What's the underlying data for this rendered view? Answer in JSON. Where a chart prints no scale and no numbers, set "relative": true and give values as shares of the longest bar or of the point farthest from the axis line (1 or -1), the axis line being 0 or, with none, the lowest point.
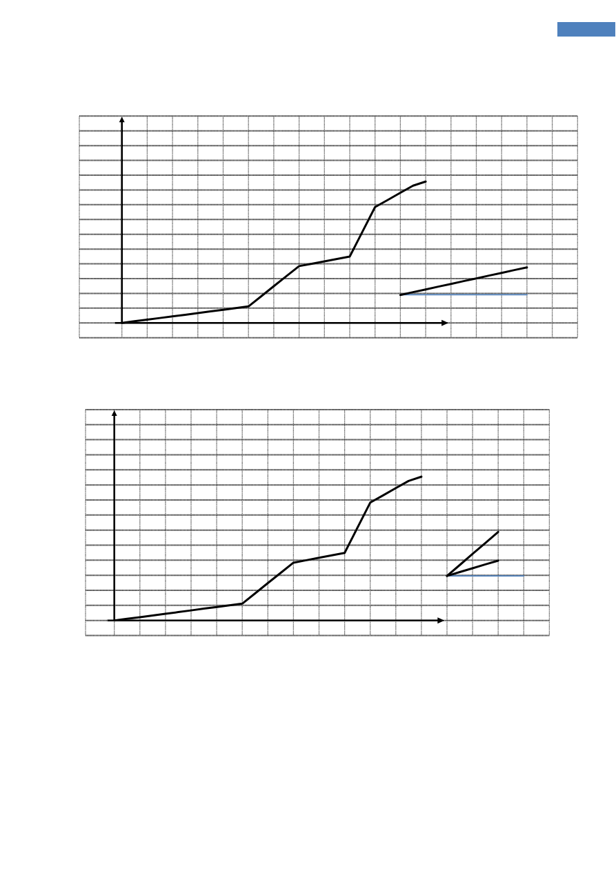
{
  "chart_data": [
    {
      "type": "line",
      "relative": true,
      "grid": true,
      "categories": [
        null,
        null,
        null,
        null,
        null,
        null,
        null,
        null,
        null,
        null,
        null,
        null,
        null,
        null,
        null,
        null,
        null,
        null,
        null,
        null,
        null,
        null,
        null,
        null,
        null,
        null,
        null,
        null,
        null,
        null,
        null,
        null,
        null,
        null,
        null,
        null,
        null
      ],
      "series": [
        {
          "color": "#4f81bd",
          "values": [
            null,
            null,
            null,
            null,
            null,
            null,
            null,
            null,
            null,
            null,
            null,
            null,
            null,
            null,
            null,
            null,
            null,
            null,
            null,
            null,
            null,
            null,
            0.2,
            0.2,
            0.2,
            0.2,
            0.2,
            0.2,
            0.2,
            0.2,
            0.2,
            0.2,
            0.2,
            null,
            null,
            null,
            null
          ]
        },
        {
          "color": "#000000",
          "values": [
            0,
            0.012,
            0.023,
            0.035,
            0.047,
            0.058,
            0.07,
            0.082,
            0.093,
            0.105,
            0.117,
            0.188,
            0.26,
            0.331,
            0.402,
            0.419,
            0.436,
            0.453,
            0.47,
            0.645,
            0.82,
            0.87,
            0.921,
            0.971,
            1,
            null,
            null,
            null,
            null,
            null,
            null,
            null,
            null,
            null,
            null,
            null,
            null
          ]
        },
        {
          "color": "#000000",
          "values": [
            null,
            null,
            null,
            null,
            null,
            null,
            null,
            null,
            null,
            null,
            null,
            null,
            null,
            null,
            null,
            null,
            null,
            null,
            null,
            null,
            null,
            null,
            0.198,
            0.218,
            0.237,
            0.257,
            0.276,
            0.296,
            0.315,
            0.335,
            0.354,
            0.374,
            0.393,
            null,
            null,
            null,
            null
          ]
        }
      ]
    },
    {
      "type": "line",
      "relative": true,
      "grid": true,
      "categories": [
        null,
        null,
        null,
        null,
        null,
        null,
        null,
        null,
        null,
        null,
        null,
        null,
        null,
        null,
        null,
        null,
        null,
        null,
        null,
        null,
        null,
        null,
        null,
        null,
        null,
        null,
        null,
        null,
        null,
        null,
        null,
        null,
        null,
        null,
        null
      ],
      "series": [
        {
          "color": "#4f81bd",
          "values": [
            null,
            null,
            null,
            null,
            null,
            null,
            null,
            null,
            null,
            null,
            null,
            null,
            null,
            null,
            null,
            null,
            null,
            null,
            null,
            null,
            null,
            null,
            null,
            null,
            null,
            null,
            0.31,
            0.31,
            0.31,
            0.31,
            0.31,
            0.31,
            0.31,
            null,
            null
          ]
        },
        {
          "color": "#000000",
          "values": [
            0,
            0.012,
            0.023,
            0.035,
            0.047,
            0.058,
            0.07,
            0.082,
            0.093,
            0.105,
            0.117,
            0.188,
            0.26,
            0.331,
            0.402,
            0.419,
            0.436,
            0.453,
            0.47,
            0.645,
            0.82,
            0.87,
            0.921,
            0.971,
            1,
            null,
            null,
            null,
            null,
            null,
            null,
            null,
            null,
            null,
            null
          ]
        },
        {
          "color": "#000000",
          "values": [
            null,
            null,
            null,
            null,
            null,
            null,
            null,
            null,
            null,
            null,
            null,
            null,
            null,
            null,
            null,
            null,
            null,
            null,
            null,
            null,
            null,
            null,
            null,
            null,
            null,
            null,
            0.31,
            0.386,
            0.463,
            0.539,
            0.616,
            null,
            null,
            null,
            null
          ]
        },
        {
          "color": "#000000",
          "values": [
            null,
            null,
            null,
            null,
            null,
            null,
            null,
            null,
            null,
            null,
            null,
            null,
            null,
            null,
            null,
            null,
            null,
            null,
            null,
            null,
            null,
            null,
            null,
            null,
            null,
            null,
            0.31,
            0.337,
            0.363,
            0.39,
            0.416,
            null,
            null,
            null,
            null
          ]
        }
      ]
    }
  ]
}
